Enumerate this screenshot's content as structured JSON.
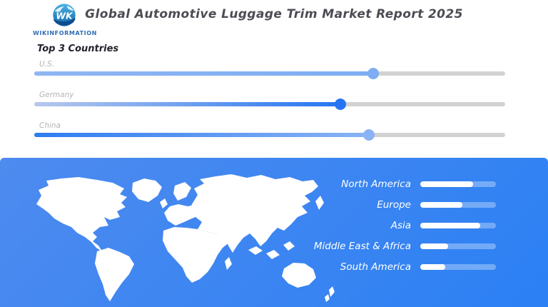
{
  "header": {
    "brand": {
      "monogram": "WK",
      "name": "WIKINFORMATION",
      "color": "#2e6db4"
    },
    "title": "Global Automotive Luggage Trim Market Report 2025"
  },
  "top_countries": {
    "heading": "Top 3 Countries",
    "track_color": "#d2d2d2",
    "sliders": [
      {
        "label": "U.S.",
        "value_pct": 72,
        "fill_from": "#8fb6f3",
        "fill_to": "#7dadf2",
        "knob_color": "#7dadf2"
      },
      {
        "label": "Germany",
        "value_pct": 65,
        "fill_from": "#b7c9ec",
        "fill_to": "#2575f2",
        "knob_color": "#2575f2"
      },
      {
        "label": "China",
        "value_pct": 71,
        "fill_from": "#2e7cf2",
        "fill_to": "#8ab3f3",
        "knob_color": "#8ab3f3"
      }
    ]
  },
  "regions": {
    "panel_gradient_from": "#4e8bef",
    "panel_gradient_to": "#2b80f4",
    "bar_track_color": "rgba(255,255,255,0.32)",
    "bar_fill_color": "#ffffff",
    "items": [
      {
        "label": "North America",
        "value_pct": 70
      },
      {
        "label": "Europe",
        "value_pct": 56
      },
      {
        "label": "Asia",
        "value_pct": 79
      },
      {
        "label": "Middle East & Africa",
        "value_pct": 37
      },
      {
        "label": "South America",
        "value_pct": 33
      }
    ]
  },
  "chart_data": [
    {
      "type": "bar",
      "title": "Top 3 Countries",
      "categories": [
        "U.S.",
        "Germany",
        "China"
      ],
      "values": [
        72,
        65,
        71
      ],
      "xlabel": "",
      "ylabel": "",
      "value_unit": "percent of slider track (estimated, no numeric labels shown)",
      "legend": false
    },
    {
      "type": "bar",
      "title": "",
      "categories": [
        "North America",
        "Europe",
        "Asia",
        "Middle East & Africa",
        "South America"
      ],
      "values": [
        70,
        56,
        79,
        37,
        33
      ],
      "xlabel": "",
      "ylabel": "",
      "value_unit": "percent of bar track filled (estimated, no numeric labels shown)",
      "legend": false
    }
  ]
}
